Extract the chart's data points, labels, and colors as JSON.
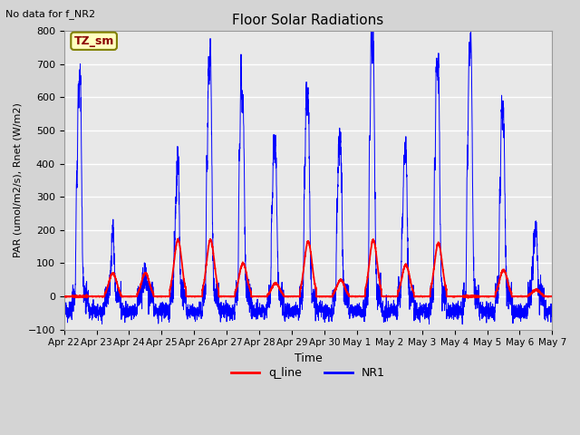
{
  "title": "Floor Solar Radiations",
  "note": "No data for f_NR2",
  "xlabel": "Time",
  "ylabel": "PAR (umol/m2/s), Rnet (W/m2)",
  "ylim": [
    -100,
    800
  ],
  "yticks": [
    -100,
    0,
    100,
    200,
    300,
    400,
    500,
    600,
    700,
    800
  ],
  "x_tick_labels": [
    "Apr 22",
    "Apr 23",
    "Apr 24",
    "Apr 25",
    "Apr 26",
    "Apr 27",
    "Apr 28",
    "Apr 29",
    "Apr 30",
    "May 1",
    "May 2",
    "May 3",
    "May 4",
    "May 5",
    "May 6",
    "May 7"
  ],
  "legend_entries": [
    "q_line",
    "NR1"
  ],
  "line_color_q": "red",
  "line_color_nr1": "blue",
  "tz_label": "TZ_sm",
  "fig_bg": "#d4d4d4",
  "plot_bg": "#e8e8e8",
  "grid_color": "white",
  "n_days": 15,
  "pts_per_day": 288,
  "nr1_peaks": [
    660,
    195,
    75,
    425,
    730,
    575,
    450,
    590,
    455,
    750,
    450,
    680,
    770,
    555,
    205,
    115
  ],
  "nr1_secondary": [
    440,
    30,
    25,
    175,
    485,
    540,
    345,
    455,
    350,
    615,
    275,
    525,
    520,
    420,
    115,
    80
  ],
  "q_peaks": [
    0,
    70,
    70,
    170,
    170,
    100,
    40,
    165,
    50,
    170,
    95,
    160,
    0,
    80,
    20,
    0
  ],
  "night_level": -45,
  "night_noise": 12
}
